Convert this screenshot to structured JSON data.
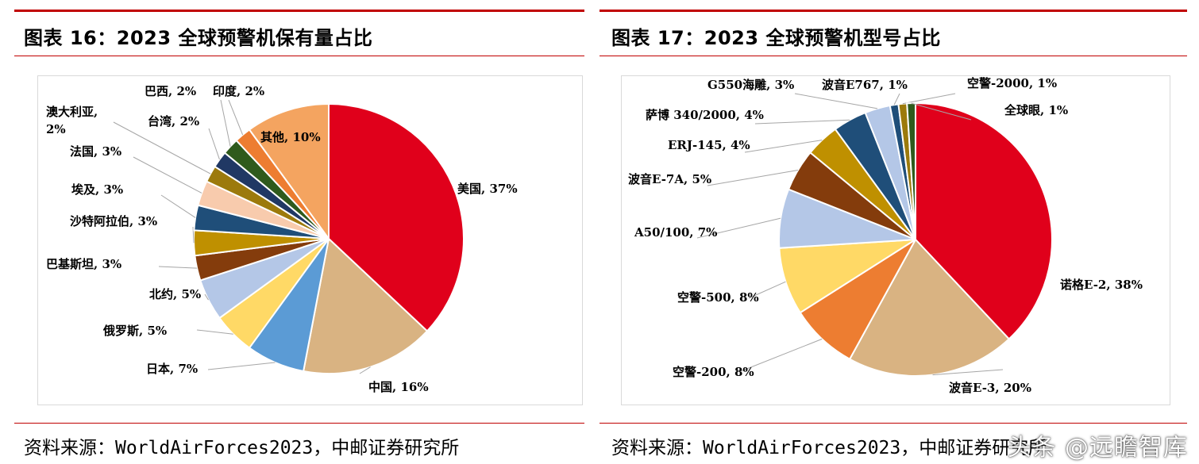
{
  "figures": [
    {
      "title": "图表 16：2023 全球预警机保有量占比",
      "source": "资料来源：WorldAirForces2023，中邮证券研究所"
    },
    {
      "title": "图表 17：2023 全球预警机型号占比",
      "source": "资料来源：WorldAirForces2023，中邮证券研究所"
    }
  ],
  "watermark": "头条 @远瞻智库",
  "chart_data": [
    {
      "type": "pie",
      "labels": [
        "美国",
        "中国",
        "日本",
        "俄罗斯",
        "北约",
        "巴基斯坦",
        "沙特阿拉伯",
        "埃及",
        "法国",
        "澳大利亚",
        "台湾",
        "巴西",
        "印度",
        "其他"
      ],
      "values": [
        37,
        16,
        7,
        5,
        5,
        3,
        3,
        3,
        3,
        2,
        2,
        2,
        2,
        10
      ],
      "display_labels": [
        "美国, 37%",
        "中国, 16%",
        "日本, 7%",
        "俄罗斯, 5%",
        "北约, 5%",
        "巴基斯坦, 3%",
        "沙特阿拉伯, 3%",
        "埃及, 3%",
        "法国, 3%",
        "澳大利亚,|2%",
        "台湾, 2%",
        "巴西, 2%",
        "印度, 2%",
        "其他, 10%"
      ],
      "colors": [
        "#e0001b",
        "#d9b382",
        "#5b9bd5",
        "#ffd966",
        "#b4c7e7",
        "#843c0c",
        "#bf9000",
        "#1f4e79",
        "#f8cbad",
        "#9c7a0c",
        "#203864",
        "#2f5a1c",
        "#ed7d31",
        "#f4a460"
      ]
    },
    {
      "type": "pie",
      "labels": [
        "诺格E-2",
        "波音E-3",
        "空警-200",
        "空警-500",
        "A50/100",
        "波音E-7A",
        "ERJ-145",
        "萨博 340/2000",
        "G550海雕",
        "波音E767",
        "空警-2000",
        "全球眼"
      ],
      "values": [
        38,
        20,
        8,
        8,
        7,
        5,
        4,
        4,
        3,
        1,
        1,
        1
      ],
      "display_labels": [
        "诺格E-2, 38%",
        "波音E-3, 20%",
        "空警-200, 8%",
        "空警-500, 8%",
        "A50/100, 7%",
        "波音E-7A, 5%",
        "ERJ-145, 4%",
        "萨博 340/2000, 4%",
        "G550海雕, 3%",
        "波音E767, 1%",
        "空警-2000, 1%",
        "全球眼, 1%"
      ],
      "colors": [
        "#e0001b",
        "#d9b382",
        "#ed7d31",
        "#ffd966",
        "#b4c7e7",
        "#843c0c",
        "#bf9000",
        "#1f4e79",
        "#b4c7e7",
        "#1f4e79",
        "#9c7a0c",
        "#2f5a1c"
      ]
    }
  ]
}
